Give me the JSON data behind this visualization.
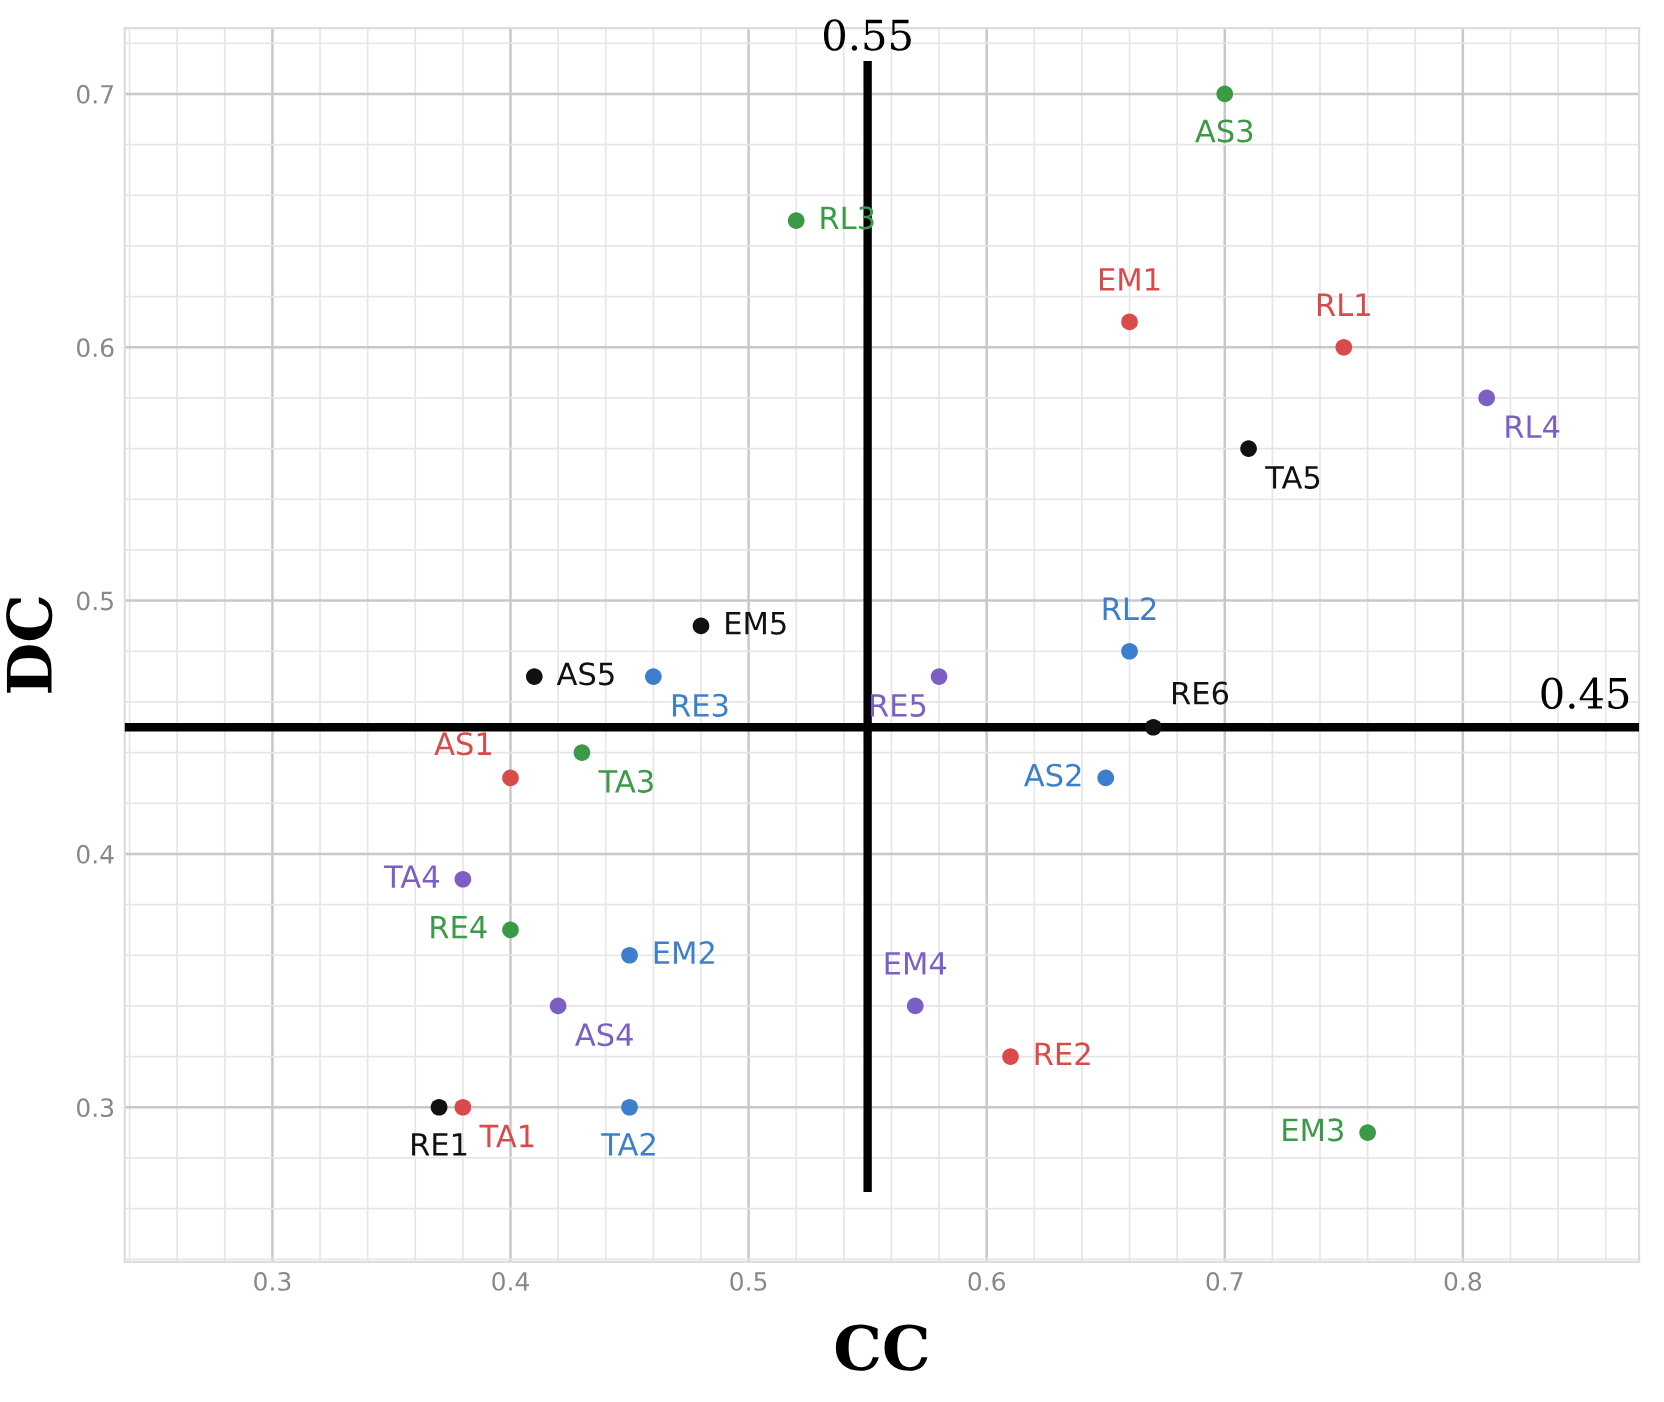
{
  "chart_data": {
    "type": "scatter",
    "xlabel": "CC",
    "ylabel": "DC",
    "xlim": [
      0.238,
      0.874
    ],
    "ylim": [
      0.239,
      0.726
    ],
    "xticks": [
      0.3,
      0.4,
      0.5,
      0.6,
      0.7,
      0.8
    ],
    "yticks": [
      0.3,
      0.4,
      0.5,
      0.6,
      0.7
    ],
    "grid": true,
    "marker": "circle",
    "ref_lines": [
      {
        "axis": "x",
        "value": 0.55,
        "label": "0.55",
        "color": "#000000"
      },
      {
        "axis": "y",
        "value": 0.45,
        "label": "0.45",
        "color": "#000000"
      }
    ],
    "series": [
      {
        "name": "AS3",
        "color": "#3a9a45",
        "x": [
          0.7
        ],
        "values": [
          0.7
        ]
      },
      {
        "name": "RL3",
        "color": "#3a9a45",
        "x": [
          0.52
        ],
        "values": [
          0.65
        ]
      },
      {
        "name": "EM1",
        "color": "#d94b4b",
        "x": [
          0.66
        ],
        "values": [
          0.61
        ]
      },
      {
        "name": "RL1",
        "color": "#d94b4b",
        "x": [
          0.75
        ],
        "values": [
          0.6
        ]
      },
      {
        "name": "RL4",
        "color": "#7b5fc4",
        "x": [
          0.81
        ],
        "values": [
          0.58
        ]
      },
      {
        "name": "TA5",
        "color": "#111111",
        "x": [
          0.71
        ],
        "values": [
          0.56
        ]
      },
      {
        "name": "EM5",
        "color": "#111111",
        "x": [
          0.48
        ],
        "values": [
          0.49
        ]
      },
      {
        "name": "RL2",
        "color": "#3d7fcc",
        "x": [
          0.66
        ],
        "values": [
          0.48
        ]
      },
      {
        "name": "AS5",
        "color": "#111111",
        "x": [
          0.41
        ],
        "values": [
          0.47
        ]
      },
      {
        "name": "RE3",
        "color": "#3d7fcc",
        "x": [
          0.46
        ],
        "values": [
          0.47
        ]
      },
      {
        "name": "RE5",
        "color": "#7b5fc4",
        "x": [
          0.58
        ],
        "values": [
          0.47
        ]
      },
      {
        "name": "RE6",
        "color": "#111111",
        "x": [
          0.67
        ],
        "values": [
          0.45
        ]
      },
      {
        "name": "AS1",
        "color": "#d94b4b",
        "x": [
          0.4
        ],
        "values": [
          0.43
        ]
      },
      {
        "name": "TA3",
        "color": "#3a9a45",
        "x": [
          0.43
        ],
        "values": [
          0.44
        ]
      },
      {
        "name": "AS2",
        "color": "#3d7fcc",
        "x": [
          0.65
        ],
        "values": [
          0.43
        ]
      },
      {
        "name": "TA4",
        "color": "#7b5fc4",
        "x": [
          0.38
        ],
        "values": [
          0.39
        ]
      },
      {
        "name": "RE4",
        "color": "#3a9a45",
        "x": [
          0.4
        ],
        "values": [
          0.37
        ]
      },
      {
        "name": "EM2",
        "color": "#3d7fcc",
        "x": [
          0.45
        ],
        "values": [
          0.36
        ]
      },
      {
        "name": "AS4",
        "color": "#7b5fc4",
        "x": [
          0.42
        ],
        "values": [
          0.34
        ]
      },
      {
        "name": "EM4",
        "color": "#7b5fc4",
        "x": [
          0.57
        ],
        "values": [
          0.34
        ]
      },
      {
        "name": "RE2",
        "color": "#d94b4b",
        "x": [
          0.61
        ],
        "values": [
          0.32
        ]
      },
      {
        "name": "RE1",
        "color": "#111111",
        "x": [
          0.37
        ],
        "values": [
          0.3
        ]
      },
      {
        "name": "TA1",
        "color": "#d94b4b",
        "x": [
          0.38
        ],
        "values": [
          0.3
        ]
      },
      {
        "name": "TA2",
        "color": "#3d7fcc",
        "x": [
          0.45
        ],
        "values": [
          0.3
        ]
      },
      {
        "name": "EM3",
        "color": "#3a9a45",
        "x": [
          0.76
        ],
        "values": [
          0.29
        ]
      }
    ]
  }
}
